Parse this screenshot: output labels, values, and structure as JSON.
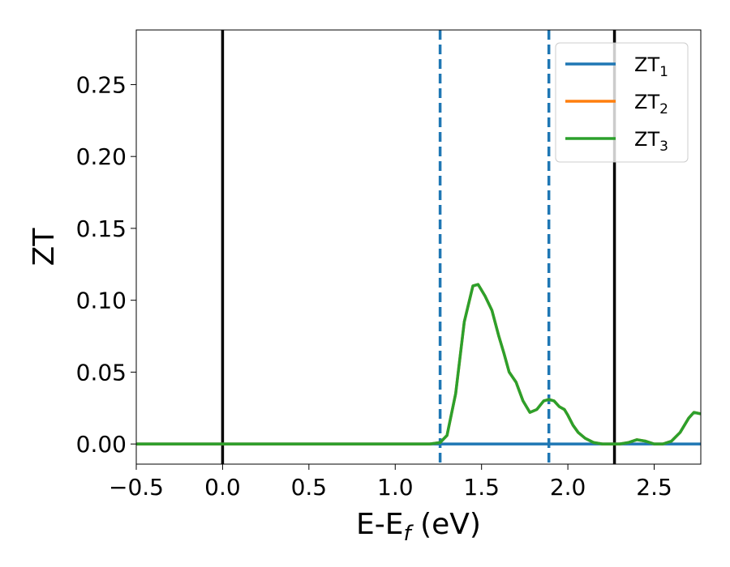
{
  "chart_data": {
    "type": "line",
    "xlabel_main": "E-E",
    "xlabel_sub": "f",
    "xlabel_unit": " (eV)",
    "ylabel": "ZT",
    "xlim": [
      -0.5,
      2.77
    ],
    "ylim": [
      -0.014,
      0.288
    ],
    "x_ticks": [
      -0.5,
      0.0,
      0.5,
      1.0,
      1.5,
      2.0,
      2.5
    ],
    "x_tick_labels": [
      "−0.5",
      "0.0",
      "0.5",
      "1.0",
      "1.5",
      "2.0",
      "2.5"
    ],
    "y_ticks": [
      0.0,
      0.05,
      0.1,
      0.15,
      0.2,
      0.25
    ],
    "y_tick_labels": [
      "0.00",
      "0.05",
      "0.10",
      "0.15",
      "0.20",
      "0.25"
    ],
    "grid": false,
    "legend_position": "top-right",
    "vlines": [
      {
        "x": 0.0,
        "style": "solid",
        "color": "#000000"
      },
      {
        "x": 2.27,
        "style": "solid",
        "color": "#000000"
      },
      {
        "x": 1.26,
        "style": "dashed",
        "color": "#1f77b4"
      },
      {
        "x": 1.89,
        "style": "dashed",
        "color": "#1f77b4"
      }
    ],
    "series": [
      {
        "name_main": "ZT",
        "name_sub": "1",
        "color": "#1f77b4",
        "x": [
          -0.5,
          2.77
        ],
        "y": [
          0.0,
          0.0
        ]
      },
      {
        "name_main": "ZT",
        "name_sub": "2",
        "color": "#ff7f0e",
        "x": [
          -0.5,
          1.2,
          1.26,
          1.3,
          1.35,
          1.4,
          1.45,
          1.48,
          1.52,
          1.56,
          1.6,
          1.63,
          1.66,
          1.7,
          1.74,
          1.78,
          1.82,
          1.86,
          1.89,
          1.92,
          1.95,
          1.98,
          2.0,
          2.03,
          2.06,
          2.1,
          2.15,
          2.2,
          2.25,
          2.3,
          2.35,
          2.4,
          2.45,
          2.5,
          2.55,
          2.6,
          2.65,
          2.7,
          2.73,
          2.77
        ],
        "y": [
          0.0,
          0.0,
          0.001,
          0.006,
          0.035,
          0.085,
          0.11,
          0.111,
          0.103,
          0.093,
          0.075,
          0.063,
          0.05,
          0.043,
          0.03,
          0.022,
          0.024,
          0.03,
          0.031,
          0.03,
          0.026,
          0.024,
          0.02,
          0.013,
          0.008,
          0.004,
          0.001,
          0.0,
          0.0,
          0.0,
          0.001,
          0.003,
          0.002,
          0.0,
          0.0,
          0.002,
          0.008,
          0.018,
          0.022,
          0.021
        ]
      },
      {
        "name_main": "ZT",
        "name_sub": "3",
        "color": "#2ca02c",
        "x": [
          -0.5,
          1.2,
          1.26,
          1.3,
          1.35,
          1.4,
          1.45,
          1.48,
          1.52,
          1.56,
          1.6,
          1.63,
          1.66,
          1.7,
          1.74,
          1.78,
          1.82,
          1.86,
          1.89,
          1.92,
          1.95,
          1.98,
          2.0,
          2.03,
          2.06,
          2.1,
          2.15,
          2.2,
          2.25,
          2.3,
          2.35,
          2.4,
          2.45,
          2.5,
          2.55,
          2.6,
          2.65,
          2.7,
          2.73,
          2.77
        ],
        "y": [
          0.0,
          0.0,
          0.001,
          0.006,
          0.035,
          0.085,
          0.11,
          0.111,
          0.103,
          0.093,
          0.075,
          0.063,
          0.05,
          0.043,
          0.03,
          0.022,
          0.024,
          0.03,
          0.031,
          0.03,
          0.026,
          0.024,
          0.02,
          0.013,
          0.008,
          0.004,
          0.001,
          0.0,
          0.0,
          0.0,
          0.001,
          0.003,
          0.002,
          0.0,
          0.0,
          0.002,
          0.008,
          0.018,
          0.022,
          0.021
        ]
      }
    ]
  }
}
